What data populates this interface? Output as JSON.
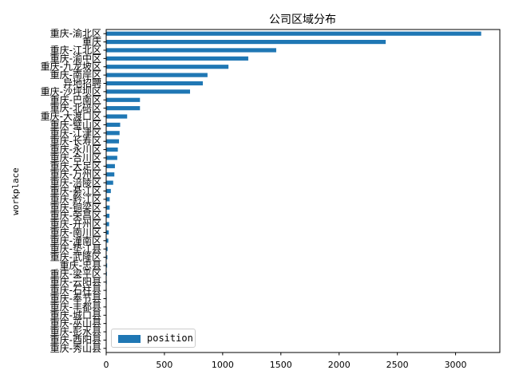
{
  "chart_data": {
    "type": "bar",
    "orientation": "horizontal",
    "title": "公司区域分布",
    "ylabel": "workplace",
    "xlabel": "",
    "xlim": [
      0,
      3380
    ],
    "xticks": [
      0,
      500,
      1000,
      1500,
      2000,
      2500,
      3000
    ],
    "grid": false,
    "legend_position": "lower-left",
    "bar_color": "#1f77b4",
    "series": [
      {
        "name": "position"
      }
    ],
    "categories": [
      "重庆-渝北区",
      "重庆",
      "重庆-江北区",
      "重庆-渝中区",
      "重庆-九龙坡区",
      "重庆-南岸区",
      "异地招聘",
      "重庆-沙坪坝区",
      "重庆-巴南区",
      "重庆-北碚区",
      "重庆-大渡口区",
      "重庆-璧山区",
      "重庆-江津区",
      "重庆-长寿区",
      "重庆-永川区",
      "重庆-合川区",
      "重庆-大足区",
      "重庆-万州区",
      "重庆-涪陵区",
      "重庆-綦江区",
      "重庆-黔江区",
      "重庆-铜梁区",
      "重庆-荣昌区",
      "重庆-开州区",
      "重庆-南川区",
      "重庆-潼南区",
      "重庆-垫江县",
      "重庆-武隆区",
      "重庆-忠县",
      "重庆-梁平区",
      "重庆-云阳县",
      "重庆-石柱县",
      "重庆-奉节县",
      "重庆-丰都县",
      "重庆-城口县",
      "重庆-巫山县",
      "重庆-彭水县",
      "重庆-酉阳县",
      "重庆-秀山县"
    ],
    "values": [
      3220,
      2400,
      1460,
      1220,
      1050,
      870,
      830,
      720,
      290,
      290,
      180,
      120,
      115,
      110,
      100,
      95,
      75,
      70,
      60,
      40,
      30,
      30,
      28,
      25,
      22,
      18,
      12,
      10,
      8,
      6,
      5,
      4,
      4,
      3,
      3,
      2,
      2,
      2,
      1
    ]
  }
}
